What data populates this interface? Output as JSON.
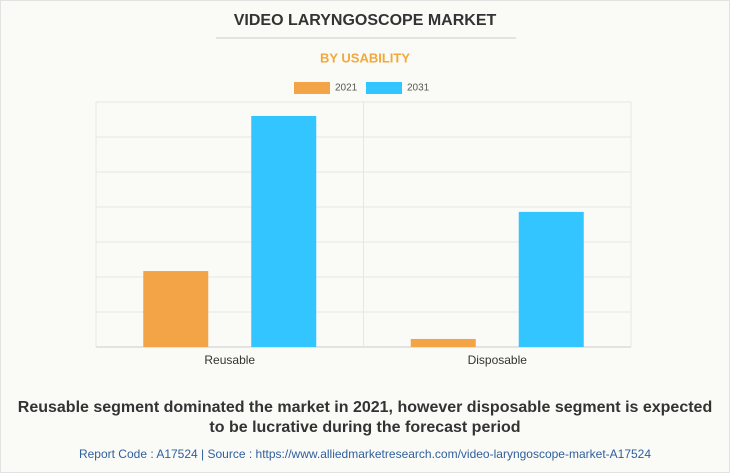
{
  "chart_data": {
    "type": "bar",
    "title": "VIDEO LARYNGOSCOPE MARKET",
    "subtitle": "BY USABILITY",
    "categories": [
      "Reusable",
      "Disposable"
    ],
    "series": [
      {
        "name": "2021",
        "color": "#f2a446",
        "values": [
          2.17,
          0.23
        ]
      },
      {
        "name": "2031",
        "color": "#33c5ff",
        "values": [
          6.6,
          3.86
        ]
      }
    ],
    "ylim": [
      0,
      7
    ],
    "yticks": [
      0,
      1,
      2,
      3,
      4,
      5,
      6,
      7
    ],
    "grid": true,
    "caption": "Reusable segment dominated the market in 2021, however disposable segment is expected to be lucrative during the forecast period",
    "source": "Report Code : A17524  |  Source : https://www.alliedmarketresearch.com/video-laryngoscope-market-A17524"
  }
}
